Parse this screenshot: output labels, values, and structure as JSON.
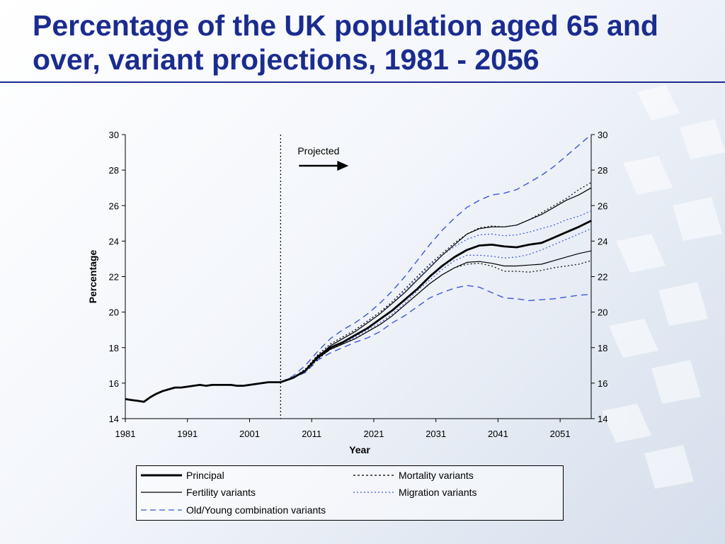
{
  "title": "Percentage of the UK population aged 65 and over, variant projections, 1981 - 2056",
  "chart_data": {
    "type": "line",
    "xlabel": "Year",
    "ylabel": "Percentage",
    "xlim": [
      1981,
      2056
    ],
    "ylim": [
      14,
      30
    ],
    "xticks": [
      1981,
      1991,
      2001,
      2011,
      2021,
      2031,
      2041,
      2051
    ],
    "yticks": [
      14,
      16,
      18,
      20,
      22,
      24,
      26,
      28,
      30
    ],
    "projection_start": 2006,
    "annotation": "Projected",
    "series": [
      {
        "name": "Principal",
        "style": "solid-thick",
        "color": "#000000",
        "x": [
          1981,
          1982,
          1983,
          1984,
          1985,
          1986,
          1987,
          1988,
          1989,
          1990,
          1991,
          1992,
          1993,
          1994,
          1995,
          1996,
          1997,
          1998,
          1999,
          2000,
          2001,
          2002,
          2003,
          2004,
          2005,
          2006,
          2008,
          2010,
          2012,
          2014,
          2016,
          2018,
          2020,
          2022,
          2024,
          2026,
          2028,
          2030,
          2032,
          2034,
          2036,
          2038,
          2040,
          2042,
          2044,
          2046,
          2048,
          2050,
          2052,
          2054,
          2056
        ],
        "y": [
          15.1,
          15.05,
          15.0,
          14.95,
          15.2,
          15.4,
          15.55,
          15.65,
          15.75,
          15.75,
          15.8,
          15.85,
          15.9,
          15.85,
          15.9,
          15.9,
          15.9,
          15.9,
          15.85,
          15.85,
          15.9,
          15.95,
          16.0,
          16.05,
          16.05,
          16.05,
          16.3,
          16.7,
          17.5,
          18.0,
          18.3,
          18.7,
          19.1,
          19.6,
          20.1,
          20.7,
          21.3,
          22.0,
          22.6,
          23.1,
          23.5,
          23.75,
          23.8,
          23.7,
          23.65,
          23.8,
          23.9,
          24.2,
          24.5,
          24.8,
          25.15
        ]
      },
      {
        "name": "Fertility variants",
        "style": "solid-thin",
        "color": "#000000",
        "x": [
          2006,
          2008,
          2010,
          2012,
          2014,
          2016,
          2018,
          2020,
          2022,
          2024,
          2026,
          2028,
          2030,
          2032,
          2034,
          2036,
          2038,
          2040,
          2042,
          2044,
          2046,
          2048,
          2050,
          2052,
          2054,
          2056
        ],
        "y": [
          16.05,
          16.3,
          16.75,
          17.5,
          18.1,
          18.5,
          18.9,
          19.4,
          19.9,
          20.5,
          21.1,
          21.8,
          22.5,
          23.2,
          23.8,
          24.4,
          24.7,
          24.8,
          24.8,
          24.9,
          25.2,
          25.5,
          25.9,
          26.3,
          26.6,
          27.0
        ],
        "y2": [
          16.05,
          16.3,
          16.7,
          17.4,
          17.9,
          18.2,
          18.5,
          18.9,
          19.3,
          19.8,
          20.4,
          21.0,
          21.6,
          22.1,
          22.5,
          22.8,
          22.85,
          22.75,
          22.6,
          22.6,
          22.65,
          22.7,
          22.9,
          23.1,
          23.3,
          23.45
        ]
      },
      {
        "name": "Mortality variants",
        "style": "dotted",
        "color": "#000000",
        "x": [
          2006,
          2008,
          2010,
          2012,
          2014,
          2016,
          2018,
          2020,
          2022,
          2024,
          2026,
          2028,
          2030,
          2032,
          2034,
          2036,
          2038,
          2040,
          2042,
          2044,
          2046,
          2048,
          2050,
          2052,
          2054,
          2056
        ],
        "y": [
          16.05,
          16.3,
          16.8,
          17.6,
          18.2,
          18.6,
          19.0,
          19.5,
          20.0,
          20.6,
          21.3,
          22.0,
          22.7,
          23.3,
          23.9,
          24.4,
          24.75,
          24.85,
          24.8,
          24.9,
          25.2,
          25.6,
          26.0,
          26.4,
          26.9,
          27.3
        ],
        "y2": [
          16.05,
          16.3,
          16.65,
          17.35,
          17.9,
          18.2,
          18.5,
          18.9,
          19.3,
          19.8,
          20.4,
          21.0,
          21.6,
          22.1,
          22.5,
          22.7,
          22.75,
          22.6,
          22.3,
          22.3,
          22.25,
          22.35,
          22.5,
          22.6,
          22.7,
          22.9
        ]
      },
      {
        "name": "Migration variants",
        "style": "dotted-blue",
        "color": "#3a57d6",
        "x": [
          2006,
          2008,
          2010,
          2012,
          2014,
          2016,
          2018,
          2020,
          2022,
          2024,
          2026,
          2028,
          2030,
          2032,
          2034,
          2036,
          2038,
          2040,
          2042,
          2044,
          2046,
          2048,
          2050,
          2052,
          2054,
          2056
        ],
        "y": [
          16.05,
          16.3,
          16.8,
          17.6,
          18.2,
          18.6,
          19.0,
          19.5,
          20.0,
          20.5,
          21.2,
          21.9,
          22.6,
          23.2,
          23.7,
          24.1,
          24.35,
          24.4,
          24.3,
          24.35,
          24.5,
          24.7,
          24.9,
          25.2,
          25.4,
          25.7
        ],
        "y2": [
          16.05,
          16.3,
          16.7,
          17.4,
          17.9,
          18.2,
          18.6,
          19.0,
          19.4,
          19.9,
          20.5,
          21.2,
          21.8,
          22.4,
          22.9,
          23.2,
          23.2,
          23.15,
          23.05,
          23.1,
          23.25,
          23.5,
          23.8,
          24.1,
          24.4,
          24.7
        ]
      },
      {
        "name": "Old/Young combination variants",
        "style": "dashed-blue",
        "color": "#3a57d6",
        "x": [
          2006,
          2008,
          2010,
          2012,
          2014,
          2016,
          2018,
          2020,
          2022,
          2024,
          2026,
          2028,
          2030,
          2032,
          2034,
          2036,
          2038,
          2040,
          2042,
          2044,
          2046,
          2048,
          2050,
          2052,
          2054,
          2056
        ],
        "y": [
          16.05,
          16.4,
          17.0,
          17.8,
          18.5,
          19.0,
          19.4,
          19.9,
          20.5,
          21.2,
          22.0,
          22.9,
          23.8,
          24.6,
          25.3,
          25.9,
          26.3,
          26.6,
          26.7,
          26.9,
          27.3,
          27.7,
          28.2,
          28.8,
          29.4,
          30.0
        ],
        "y2": [
          16.05,
          16.3,
          16.6,
          17.3,
          17.7,
          18.0,
          18.3,
          18.55,
          18.9,
          19.4,
          19.8,
          20.3,
          20.8,
          21.1,
          21.35,
          21.5,
          21.4,
          21.1,
          20.8,
          20.75,
          20.65,
          20.7,
          20.75,
          20.85,
          20.95,
          21.0
        ]
      }
    ]
  },
  "legend": {
    "items": [
      {
        "label": "Principal",
        "style": "solid-thick"
      },
      {
        "label": "Mortality variants",
        "style": "dotted"
      },
      {
        "label": "Fertility variants",
        "style": "solid-thin"
      },
      {
        "label": "Migration variants",
        "style": "dotted-blue"
      },
      {
        "label": "Old/Young combination variants",
        "style": "dashed-blue"
      }
    ]
  }
}
